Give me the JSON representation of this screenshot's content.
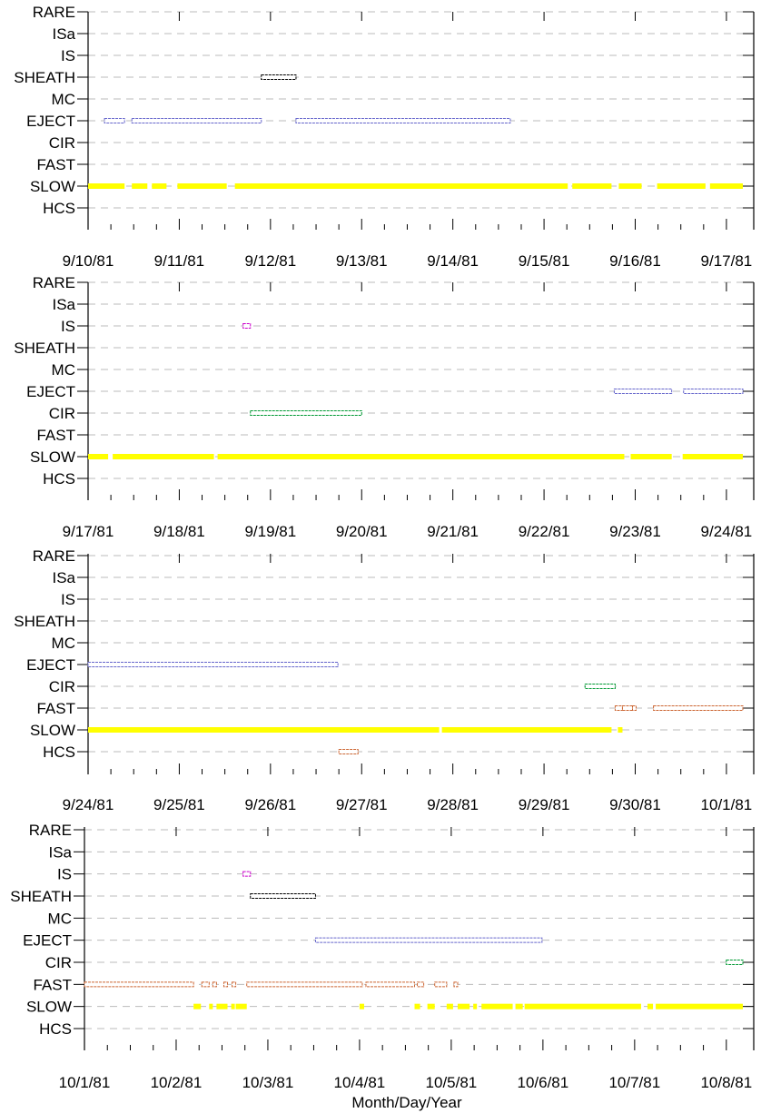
{
  "xlabel": "Month/Day/Year",
  "categories": [
    "RARE",
    "ISa",
    "IS",
    "SHEATH",
    "MC",
    "EJECT",
    "CIR",
    "FAST",
    "SLOW",
    "HCS"
  ],
  "colors": {
    "SLOW": "#ffff00",
    "EJECT": "#6666cc",
    "SHEATH": "#000000",
    "IS": "#cc00cc",
    "CIR": "#009933",
    "FAST": "#cc6633",
    "HCS": "#cc6633",
    "grid": "#bbbbbb",
    "axis": "#000000"
  },
  "chart_data": [
    {
      "type": "timeline",
      "x_start": "9/10/81",
      "x_end": "9/17/81",
      "tick_labels": [
        "9/10/81",
        "9/11/81",
        "9/12/81",
        "9/13/81",
        "9/14/81",
        "9/15/81",
        "9/16/81",
        "9/17/81"
      ],
      "series": [
        {
          "category": "SHEATH",
          "segments": [
            [
              1.9,
              2.28
            ]
          ]
        },
        {
          "category": "EJECT",
          "segments": [
            [
              0.18,
              0.4
            ],
            [
              0.48,
              1.9
            ],
            [
              2.28,
              4.63
            ]
          ]
        },
        {
          "category": "SLOW",
          "segments": [
            [
              0.0,
              0.4
            ],
            [
              0.48,
              0.65
            ],
            [
              0.7,
              0.86
            ],
            [
              0.98,
              1.52
            ],
            [
              1.61,
              5.26
            ],
            [
              5.31,
              5.74
            ],
            [
              5.82,
              6.07
            ],
            [
              6.24,
              6.77
            ],
            [
              6.82,
              7.18
            ]
          ]
        }
      ]
    },
    {
      "type": "timeline",
      "x_start": "9/17/81",
      "x_end": "9/24/81",
      "tick_labels": [
        "9/17/81",
        "9/18/81",
        "9/19/81",
        "9/20/81",
        "9/21/81",
        "9/22/81",
        "9/23/81",
        "9/24/81"
      ],
      "series": [
        {
          "category": "IS",
          "segments": [
            [
              1.7,
              1.78
            ]
          ]
        },
        {
          "category": "EJECT",
          "segments": [
            [
              5.77,
              6.4
            ],
            [
              6.53,
              7.18
            ]
          ]
        },
        {
          "category": "CIR",
          "segments": [
            [
              1.78,
              3.0
            ]
          ]
        },
        {
          "category": "SLOW",
          "segments": [
            [
              0.0,
              0.22
            ],
            [
              0.27,
              1.38
            ],
            [
              1.42,
              5.88
            ],
            [
              5.95,
              6.4
            ],
            [
              6.52,
              7.18
            ]
          ]
        }
      ]
    },
    {
      "type": "timeline",
      "x_start": "9/24/81",
      "x_end": "10/1/81",
      "tick_labels": [
        "9/24/81",
        "9/25/81",
        "9/26/81",
        "9/27/81",
        "9/28/81",
        "9/29/81",
        "9/30/81",
        "10/1/81"
      ],
      "series": [
        {
          "category": "EJECT",
          "segments": [
            [
              0.0,
              2.74
            ]
          ]
        },
        {
          "category": "CIR",
          "segments": [
            [
              5.45,
              5.78
            ]
          ]
        },
        {
          "category": "FAST",
          "segments": [
            [
              5.78,
              5.86
            ],
            [
              5.86,
              5.97
            ],
            [
              5.97,
              6.0
            ],
            [
              6.2,
              7.18
            ]
          ]
        },
        {
          "category": "SLOW",
          "segments": [
            [
              0.0,
              3.85
            ],
            [
              3.88,
              5.74
            ],
            [
              5.81,
              5.86
            ]
          ]
        },
        {
          "category": "HCS",
          "segments": [
            [
              2.75,
              2.96
            ]
          ]
        }
      ]
    },
    {
      "type": "timeline",
      "x_start": "10/1/81",
      "x_end": "10/8/81",
      "tick_labels": [
        "10/1/81",
        "10/2/81",
        "10/3/81",
        "10/4/81",
        "10/5/81",
        "10/6/81",
        "10/7/81",
        "10/8/81"
      ],
      "series": [
        {
          "category": "IS",
          "segments": [
            [
              1.73,
              1.81
            ]
          ]
        },
        {
          "category": "SHEATH",
          "segments": [
            [
              1.81,
              2.52
            ]
          ]
        },
        {
          "category": "EJECT",
          "segments": [
            [
              2.52,
              4.99
            ]
          ]
        },
        {
          "category": "CIR",
          "segments": [
            [
              7.0,
              7.18
            ]
          ]
        },
        {
          "category": "FAST",
          "segments": [
            [
              0.0,
              1.19
            ],
            [
              1.28,
              1.36
            ],
            [
              1.4,
              1.44
            ],
            [
              1.52,
              1.56
            ],
            [
              1.61,
              1.65
            ],
            [
              1.77,
              3.03
            ],
            [
              3.07,
              3.6
            ],
            [
              3.63,
              3.7
            ],
            [
              3.82,
              3.95
            ],
            [
              4.03,
              4.07
            ]
          ]
        },
        {
          "category": "SLOW",
          "segments": [
            [
              1.19,
              1.27
            ],
            [
              1.36,
              1.4
            ],
            [
              1.44,
              1.56
            ],
            [
              1.6,
              1.64
            ],
            [
              1.65,
              1.77
            ],
            [
              3.0,
              3.05
            ],
            [
              3.6,
              3.66
            ],
            [
              3.74,
              3.82
            ],
            [
              3.95,
              4.02
            ],
            [
              4.07,
              4.2
            ],
            [
              4.24,
              4.28
            ],
            [
              4.33,
              4.67
            ],
            [
              4.7,
              4.78
            ],
            [
              4.8,
              6.07
            ],
            [
              6.14,
              6.2
            ],
            [
              6.23,
              7.18
            ]
          ]
        }
      ]
    }
  ]
}
